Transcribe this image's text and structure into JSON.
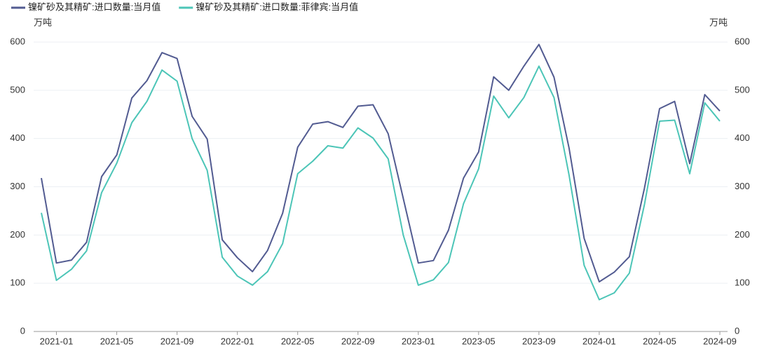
{
  "chart_data": {
    "type": "line",
    "categories": [
      null,
      "2021-01",
      null,
      null,
      null,
      "2021-05",
      null,
      null,
      null,
      "2021-09",
      null,
      null,
      null,
      "2022-01",
      null,
      null,
      null,
      "2022-05",
      null,
      null,
      null,
      "2022-09",
      null,
      null,
      null,
      "2023-01",
      null,
      null,
      null,
      "2023-05",
      null,
      null,
      null,
      "2023-09",
      null,
      null,
      null,
      "2024-01",
      null,
      null,
      null,
      "2024-05",
      null,
      null,
      null,
      "2024-09"
    ],
    "series": [
      {
        "name": "镍矿砂及其精矿:进口数量:当月值",
        "color": "#525b91",
        "values": [
          318,
          142,
          148,
          185,
          321,
          366,
          484,
          520,
          578,
          566,
          446,
          399,
          190,
          153,
          124,
          168,
          245,
          382,
          430,
          435,
          423,
          467,
          470,
          410,
          276,
          142,
          147,
          210,
          318,
          372,
          528,
          500,
          550,
          595,
          527,
          380,
          193,
          103,
          123,
          155,
          297,
          462,
          477,
          348,
          491,
          457
        ]
      },
      {
        "name": "镍矿砂及其精矿:进口数量:菲律宾:当月值",
        "color": "#4cc5b7",
        "axis": "y2",
        "values": [
          246,
          106,
          129,
          167,
          288,
          349,
          433,
          477,
          542,
          519,
          400,
          334,
          154,
          115,
          96,
          124,
          182,
          327,
          353,
          385,
          380,
          422,
          401,
          358,
          200,
          96,
          107,
          143,
          265,
          337,
          488,
          443,
          485,
          550,
          485,
          324,
          137,
          66,
          80,
          121,
          263,
          436,
          438,
          327,
          474,
          436
        ]
      }
    ],
    "ylabel": "万吨",
    "y2label": "万吨",
    "ylim": [
      0,
      600
    ],
    "yticks": [
      0,
      100,
      200,
      300,
      400,
      500,
      600
    ],
    "y2lim": [
      0,
      600
    ],
    "y2ticks": [
      0,
      100,
      200,
      300,
      400,
      500,
      600
    ],
    "grid": true,
    "legend": "top-left"
  }
}
